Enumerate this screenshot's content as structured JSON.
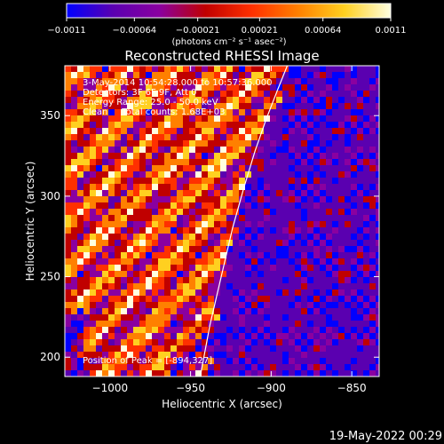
{
  "colorbar": {
    "ticks": [
      -0.0011,
      -0.00064,
      -0.00021,
      0.00021,
      0.00064,
      0.0011
    ],
    "tick_labels": [
      "−0.0011",
      "−0.00064",
      "−0.00021",
      "0.00021",
      "0.00064",
      "0.0011"
    ],
    "unit_label": "(photons cm⁻² s⁻¹ asec⁻²)",
    "range": [
      -0.0011,
      0.0011
    ],
    "colors": [
      "#0000ff",
      "#5a00b0",
      "#8a00a0",
      "#c00000",
      "#ff3000",
      "#ff8000",
      "#ffd020",
      "#ffffe0"
    ]
  },
  "chart_data": {
    "type": "heatmap",
    "title": "Reconstructed RHESSI Image",
    "xlabel": "Heliocentric X (arcsec)",
    "ylabel": "Heliocentric Y (arcsec)",
    "xlim": [
      -1028,
      -833
    ],
    "ylim": [
      188,
      381
    ],
    "xticks": [
      -1000,
      -950,
      -900,
      -850
    ],
    "xtick_labels": [
      "−1000",
      "−950",
      "−900",
      "−850"
    ],
    "yticks": [
      200,
      250,
      300,
      350
    ],
    "ytick_labels": [
      "200",
      "250",
      "300",
      "350"
    ],
    "limb_curve": {
      "x": [
        -944,
        -938,
        -931,
        -924,
        -917,
        -910,
        -903,
        -896,
        -890
      ],
      "y": [
        188,
        220,
        250,
        280,
        305,
        328,
        348,
        366,
        381
      ]
    },
    "peak": {
      "x": -894,
      "y": 327
    }
  },
  "annotations": {
    "line1": "3-May-2014 10:54:28.000 to 10:57:36.000",
    "line2": "Detectors: 3F 6F 9F, Att 0",
    "line3": "Energy Range: 25.0 - 50.0 keV",
    "line4": "Clean     Total counts: 1.68E+03",
    "peak_label": "Position of Peak = [-894,327]"
  },
  "footer": {
    "timestamp": "19-May-2022 00:29"
  }
}
